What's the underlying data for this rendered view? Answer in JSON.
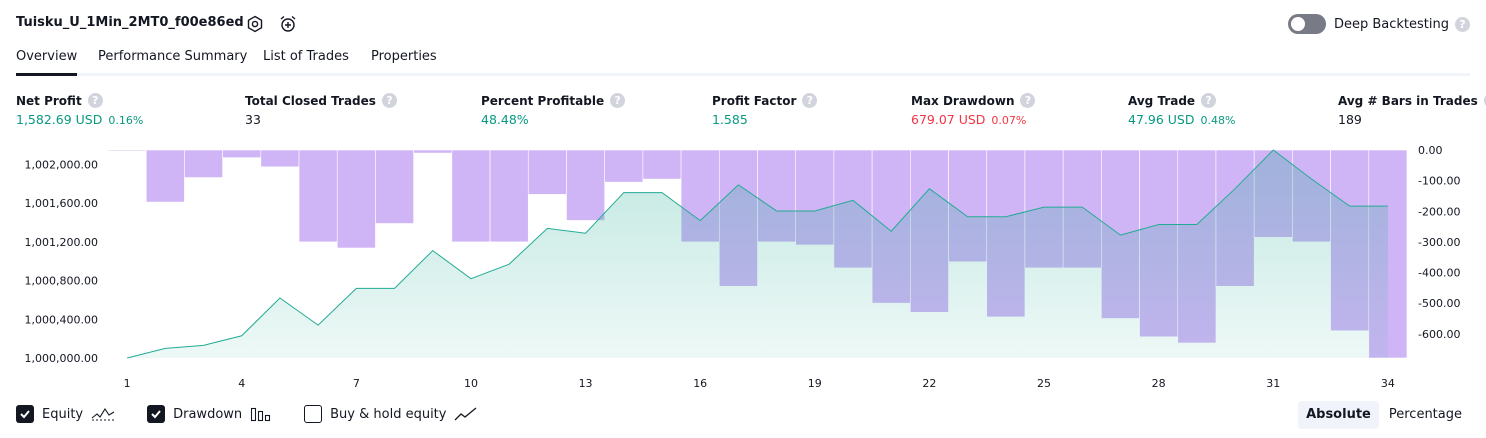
{
  "header": {
    "strategy_name": "Tuisku_U_1Min_2MT0_f00e86ed",
    "settings_icon": "gear-icon",
    "alert_icon": "alarm-clock-plus-icon",
    "deep_backtesting_label": "Deep Backtesting",
    "deep_backtesting_enabled": false,
    "help_glyph": "?"
  },
  "tabs": [
    {
      "label": "Overview",
      "active": true
    },
    {
      "label": "Performance Summary",
      "active": false
    },
    {
      "label": "List of Trades",
      "active": false
    },
    {
      "label": "Properties",
      "active": false
    }
  ],
  "stats": [
    {
      "title": "Net Profit",
      "value": "1,582.69 USD",
      "pct": "0.16%",
      "color": "green"
    },
    {
      "title": "Total Closed Trades",
      "value": "33",
      "pct": "",
      "color": "neutral"
    },
    {
      "title": "Percent Profitable",
      "value": "48.48%",
      "pct": "",
      "color": "green"
    },
    {
      "title": "Profit Factor",
      "value": "1.585",
      "pct": "",
      "color": "green"
    },
    {
      "title": "Max Drawdown",
      "value": "679.07 USD",
      "pct": "0.07%",
      "color": "red"
    },
    {
      "title": "Avg Trade",
      "value": "47.96 USD",
      "pct": "0.48%",
      "color": "green"
    },
    {
      "title": "Avg # Bars in Trades",
      "value": "189",
      "pct": "",
      "color": "neutral"
    }
  ],
  "chart_data": {
    "type": "line",
    "x": [
      1,
      2,
      3,
      4,
      5,
      6,
      7,
      8,
      9,
      10,
      11,
      12,
      13,
      14,
      15,
      16,
      17,
      18,
      19,
      20,
      21,
      22,
      23,
      24,
      25,
      26,
      27,
      28,
      29,
      30,
      31,
      32,
      33,
      34
    ],
    "xticks": [
      "1",
      "4",
      "7",
      "10",
      "13",
      "16",
      "19",
      "22",
      "25",
      "28",
      "31",
      "34"
    ],
    "left_axis": {
      "ticks": [
        "1,000,000.00",
        "1,000,400.00",
        "1,000,800.00",
        "1,001,200.00",
        "1,001,600.00",
        "1,002,000.00"
      ],
      "ylim": [
        1000000,
        1002150
      ]
    },
    "right_axis": {
      "ticks": [
        "0.00",
        "-100.00",
        "-200.00",
        "-300.00",
        "-400.00",
        "-500.00",
        "-600.00"
      ],
      "ylim": [
        -679.07,
        0
      ]
    },
    "series": [
      {
        "key": "equity",
        "type": "area",
        "axis": "left",
        "color": "#22ab94",
        "values": [
          1000000,
          1000100,
          1000130,
          1000230,
          1000620,
          1000340,
          1000720,
          1000720,
          1001110,
          1000820,
          1000970,
          1001340,
          1001290,
          1001710,
          1001710,
          1001420,
          1001790,
          1001520,
          1001520,
          1001630,
          1001310,
          1001750,
          1001460,
          1001460,
          1001560,
          1001560,
          1001270,
          1001380,
          1001380,
          1001750,
          1002150,
          1001850,
          1001570,
          1001570
        ]
      },
      {
        "key": "drawdown",
        "type": "bar",
        "axis": "right",
        "color": "#cdb1f5",
        "values": [
          0,
          -170,
          -90,
          -25,
          -55,
          -300,
          -320,
          -240,
          -10,
          -300,
          -300,
          -145,
          -230,
          -105,
          -95,
          -300,
          -445,
          -300,
          -310,
          -385,
          -500,
          -530,
          -365,
          -545,
          -385,
          -385,
          -550,
          -610,
          -630,
          -445,
          -285,
          -300,
          -590,
          -679.07
        ]
      }
    ]
  },
  "legend": {
    "items": [
      {
        "label": "Equity",
        "checked": true,
        "icon": "equity-line-icon"
      },
      {
        "label": "Drawdown",
        "checked": true,
        "icon": "drawdown-bars-icon"
      },
      {
        "label": "Buy & hold equity",
        "checked": false,
        "icon": "buy-hold-line-icon"
      }
    ]
  },
  "view_modes": [
    {
      "label": "Absolute",
      "active": true
    },
    {
      "label": "Percentage",
      "active": false
    }
  ]
}
